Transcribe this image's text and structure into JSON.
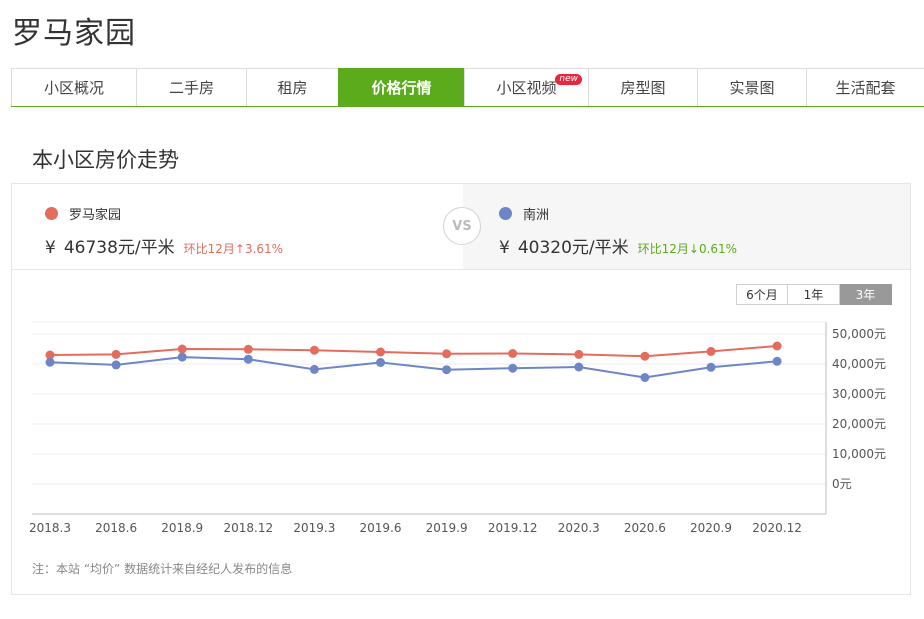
{
  "page": {
    "title": "罗马家园"
  },
  "tabs": [
    {
      "label": "小区概况",
      "active": false
    },
    {
      "label": "二手房",
      "active": false
    },
    {
      "label": "租房",
      "active": false
    },
    {
      "label": "价格行情",
      "active": true
    },
    {
      "label": "小区视频",
      "active": false,
      "badge": "new"
    },
    {
      "label": "房型图",
      "active": false
    },
    {
      "label": "实景图",
      "active": false
    },
    {
      "label": "生活配套",
      "active": false
    }
  ],
  "section": {
    "title": "本小区房价走势"
  },
  "compare": {
    "left": {
      "name": "罗马家园",
      "currency": "¥",
      "price": "46738元/平米",
      "change": "环比12月↑3.61%",
      "color": "#e36c5c",
      "change_color": "#e36c5c"
    },
    "vs": "VS",
    "right": {
      "name": "南洲",
      "currency": "¥",
      "price": "40320元/平米",
      "change": "环比12月↓0.61%",
      "color": "#6e86c6",
      "change_color": "#5bab1d"
    }
  },
  "range": {
    "options": [
      "6个月",
      "1年",
      "3年"
    ],
    "selected": "3年"
  },
  "chart_data": {
    "type": "line",
    "x": [
      "2018.3",
      "2018.6",
      "2018.9",
      "2018.12",
      "2019.3",
      "2019.6",
      "2019.9",
      "2019.12",
      "2020.3",
      "2020.6",
      "2020.9",
      "2020.12"
    ],
    "series": [
      {
        "name": "罗马家园",
        "color": "#e36c5c",
        "values": [
          43000,
          43200,
          45000,
          44900,
          44600,
          44000,
          43400,
          43500,
          43200,
          42600,
          44200,
          46000
        ]
      },
      {
        "name": "南洲",
        "color": "#6e86c6",
        "values": [
          40600,
          39700,
          42300,
          41600,
          38200,
          40500,
          38100,
          38600,
          39000,
          35500,
          38900,
          40900
        ]
      }
    ],
    "y_ticks": [
      "50,000元",
      "40,000元",
      "30,000元",
      "20,000元",
      "10,000元",
      "0元"
    ],
    "ylim": [
      0,
      50000
    ],
    "grid": true
  },
  "note": "注：本站 “均价” 数据统计来自经纪人发布的信息"
}
